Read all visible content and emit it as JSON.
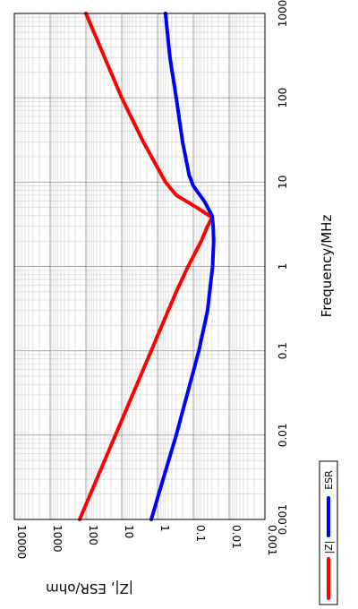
{
  "chart_data": {
    "type": "line",
    "orientation": "rotated 90 degrees clockwise",
    "xlabel": "Frequency/MHz",
    "ylabel": "|Z|, ESR/ohm",
    "x_scale": "log",
    "y_scale": "log",
    "xlim": [
      0.001,
      1000
    ],
    "ylim": [
      0.001,
      10000
    ],
    "x_ticks": [
      "0.001",
      "0.01",
      "0.1",
      "1",
      "10",
      "100",
      "1000"
    ],
    "y_ticks": [
      "0.001",
      "0.01",
      "0.1",
      "1",
      "10",
      "100",
      "1000",
      "10000"
    ],
    "grid": true,
    "legend_placement": "bottom-center",
    "series": [
      {
        "name": "|Z|",
        "color": "#ff0000",
        "x": [
          0.001,
          0.01,
          0.1,
          0.5,
          1,
          2,
          3,
          3.8,
          5,
          7,
          10,
          30,
          100,
          300,
          1000
        ],
        "y": [
          150,
          15,
          1.5,
          0.3,
          0.14,
          0.06,
          0.04,
          0.03,
          0.08,
          0.3,
          0.6,
          2.5,
          10,
          30,
          100
        ]
      },
      {
        "name": "ESR",
        "color": "#0000ff",
        "x": [
          0.001,
          0.01,
          0.1,
          0.3,
          1,
          2,
          3,
          4,
          6,
          9,
          12,
          30,
          100,
          300,
          1000
        ],
        "y": [
          1.5,
          0.3,
          0.07,
          0.04,
          0.029,
          0.027,
          0.028,
          0.03,
          0.05,
          0.1,
          0.13,
          0.2,
          0.3,
          0.45,
          0.6
        ]
      }
    ]
  }
}
